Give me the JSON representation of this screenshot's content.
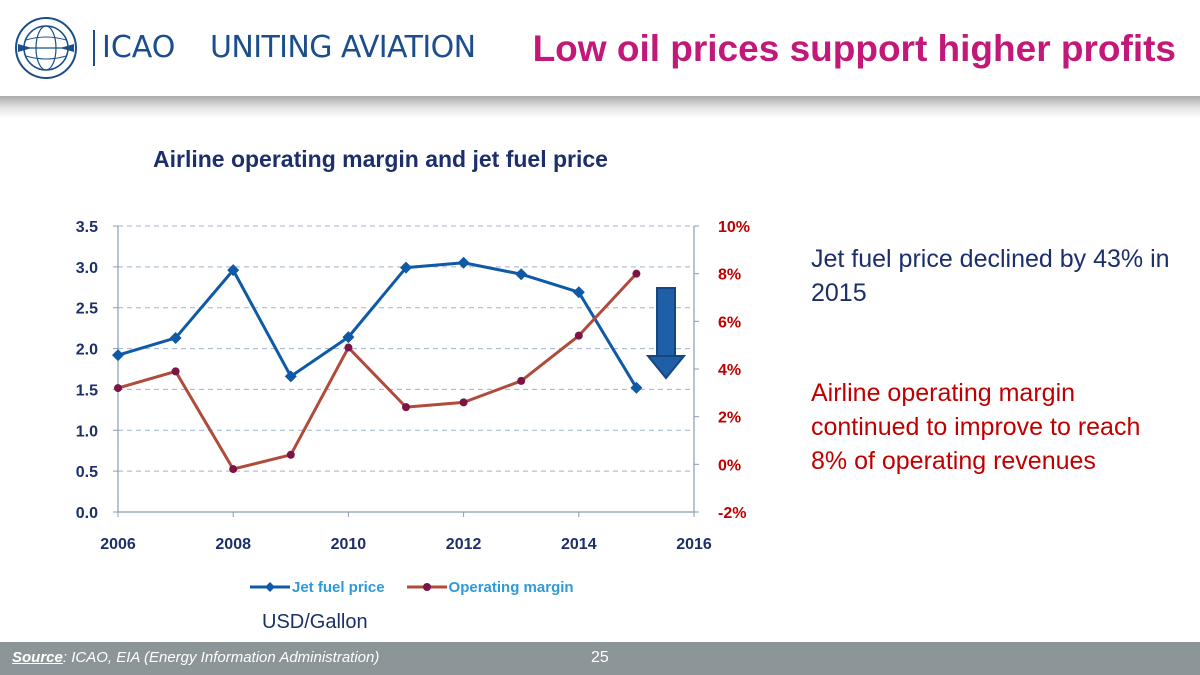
{
  "header": {
    "logo_text": "ICAO",
    "tagline": "UNITING AVIATION",
    "title": "Low oil prices support higher profits"
  },
  "chart_data": {
    "type": "line",
    "title": "Airline operating margin and jet fuel price",
    "x_ticks": [
      "2006",
      "2008",
      "2010",
      "2012",
      "2014",
      "2016"
    ],
    "xlim": [
      2006,
      2016
    ],
    "y_left": {
      "ylim": [
        0,
        3.5
      ],
      "ticks": [
        "0.0",
        "0.5",
        "1.0",
        "1.5",
        "2.0",
        "2.5",
        "3.0",
        "3.5"
      ]
    },
    "y_right": {
      "ylim": [
        -2,
        10
      ],
      "ticks": [
        "-2%",
        "0%",
        "2%",
        "4%",
        "6%",
        "8%",
        "10%"
      ]
    },
    "grid": true,
    "legend_position": "bottom",
    "unit_label": "USD/Gallon",
    "series": [
      {
        "name": "Jet fuel price",
        "axis": "left",
        "color": "#0f5aa7",
        "marker": "diamond",
        "x": [
          2006,
          2007,
          2008,
          2009,
          2010,
          2011,
          2012,
          2013,
          2014,
          2015
        ],
        "values": [
          1.92,
          2.13,
          2.96,
          1.66,
          2.14,
          2.99,
          3.05,
          2.91,
          2.69,
          1.52
        ]
      },
      {
        "name": "Operating margin",
        "axis": "right",
        "color": "#b04a3a",
        "marker_color": "#7a1545",
        "marker": "circle",
        "x": [
          2006,
          2007,
          2008,
          2009,
          2010,
          2011,
          2012,
          2013,
          2014,
          2015
        ],
        "values": [
          3.2,
          3.9,
          -0.2,
          0.4,
          4.9,
          2.4,
          2.6,
          3.5,
          5.4,
          8.0
        ]
      }
    ]
  },
  "notes": {
    "fuel": "Jet fuel price declined by 43% in 2015",
    "margin": "Airline operating margin continued to improve to reach 8% of operating revenues"
  },
  "footer": {
    "source_lead": "Source",
    "source_rest": ": ICAO, EIA (Energy Information Administration)",
    "page_number": "25"
  },
  "colors": {
    "title": "#c2187a",
    "brand_blue": "#1a4e8c",
    "left_axis": "#1c2f6b",
    "right_axis": "#c00000",
    "arrow": "#1f5fa8",
    "footer_bg": "#8c9598"
  }
}
